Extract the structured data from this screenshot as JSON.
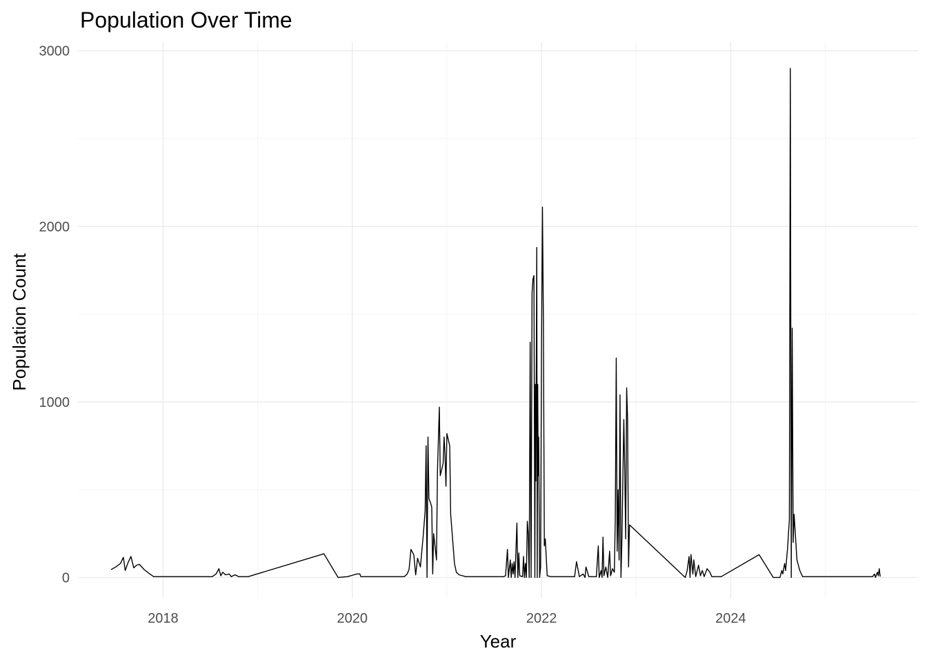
{
  "chart_data": {
    "type": "line",
    "title": "Population Over Time",
    "xlabel": "Year",
    "ylabel": "Population Count",
    "xlim": [
      2017.1,
      2025.98
    ],
    "ylim": [
      -120,
      3050
    ],
    "x_ticks": [
      2018,
      2020,
      2022,
      2024
    ],
    "x_tick_labels": [
      "2018",
      "2020",
      "2022",
      "2024"
    ],
    "y_ticks": [
      0,
      1000,
      2000,
      3000
    ],
    "y_tick_labels": [
      "0",
      "1000",
      "2000",
      "3000"
    ],
    "grid": true,
    "legend": "none",
    "series": [
      {
        "color": "#000000",
        "points": [
          [
            2017.45,
            45
          ],
          [
            2017.5,
            60
          ],
          [
            2017.55,
            80
          ],
          [
            2017.58,
            115
          ],
          [
            2017.6,
            40
          ],
          [
            2017.63,
            85
          ],
          [
            2017.66,
            120
          ],
          [
            2017.69,
            55
          ],
          [
            2017.72,
            70
          ],
          [
            2017.75,
            75
          ],
          [
            2017.8,
            45
          ],
          [
            2017.86,
            20
          ],
          [
            2017.9,
            5
          ],
          [
            2018.3,
            5
          ],
          [
            2018.52,
            5
          ],
          [
            2018.56,
            20
          ],
          [
            2018.59,
            50
          ],
          [
            2018.61,
            10
          ],
          [
            2018.63,
            30
          ],
          [
            2018.66,
            15
          ],
          [
            2018.7,
            20
          ],
          [
            2018.72,
            5
          ],
          [
            2018.76,
            15
          ],
          [
            2018.8,
            5
          ],
          [
            2018.9,
            5
          ],
          [
            2019.7,
            135
          ],
          [
            2019.85,
            0
          ],
          [
            2019.95,
            5
          ],
          [
            2020.05,
            20
          ],
          [
            2020.08,
            20
          ],
          [
            2020.09,
            5
          ],
          [
            2020.45,
            5
          ],
          [
            2020.55,
            5
          ],
          [
            2020.58,
            20
          ],
          [
            2020.6,
            45
          ],
          [
            2020.62,
            160
          ],
          [
            2020.65,
            130
          ],
          [
            2020.67,
            15
          ],
          [
            2020.69,
            110
          ],
          [
            2020.72,
            60
          ],
          [
            2020.75,
            240
          ],
          [
            2020.77,
            380
          ],
          [
            2020.78,
            750
          ],
          [
            2020.79,
            0
          ],
          [
            2020.8,
            800
          ],
          [
            2020.81,
            450
          ],
          [
            2020.83,
            420
          ],
          [
            2020.84,
            400
          ],
          [
            2020.85,
            20
          ],
          [
            2020.86,
            250
          ],
          [
            2020.87,
            200
          ],
          [
            2020.89,
            100
          ],
          [
            2020.9,
            600
          ],
          [
            2020.92,
            970
          ],
          [
            2020.93,
            580
          ],
          [
            2020.96,
            650
          ],
          [
            2020.97,
            800
          ],
          [
            2020.98,
            700
          ],
          [
            2020.99,
            520
          ],
          [
            2021.0,
            820
          ],
          [
            2021.03,
            750
          ],
          [
            2021.04,
            360
          ],
          [
            2021.08,
            80
          ],
          [
            2021.1,
            30
          ],
          [
            2021.13,
            15
          ],
          [
            2021.2,
            5
          ],
          [
            2021.4,
            5
          ],
          [
            2021.6,
            5
          ],
          [
            2021.62,
            10
          ],
          [
            2021.64,
            160
          ],
          [
            2021.65,
            0
          ],
          [
            2021.67,
            100
          ],
          [
            2021.68,
            0
          ],
          [
            2021.69,
            80
          ],
          [
            2021.7,
            20
          ],
          [
            2021.71,
            90
          ],
          [
            2021.72,
            0
          ],
          [
            2021.74,
            310
          ],
          [
            2021.75,
            0
          ],
          [
            2021.76,
            140
          ],
          [
            2021.77,
            10
          ],
          [
            2021.8,
            5
          ],
          [
            2021.81,
            120
          ],
          [
            2021.82,
            0
          ],
          [
            2021.83,
            80
          ],
          [
            2021.84,
            0
          ],
          [
            2021.85,
            320
          ],
          [
            2021.86,
            250
          ],
          [
            2021.87,
            0
          ],
          [
            2021.88,
            1340
          ],
          [
            2021.89,
            0
          ],
          [
            2021.9,
            1620
          ],
          [
            2021.91,
            1700
          ],
          [
            2021.92,
            1720
          ],
          [
            2021.93,
            0
          ],
          [
            2021.935,
            1100
          ],
          [
            2021.94,
            550
          ],
          [
            2021.95,
            1880
          ],
          [
            2021.955,
            0
          ],
          [
            2021.96,
            1100
          ],
          [
            2021.965,
            580
          ],
          [
            2021.97,
            800
          ],
          [
            2021.98,
            0
          ],
          [
            2021.99,
            60
          ],
          [
            2022.0,
            1290
          ],
          [
            2022.01,
            2110
          ],
          [
            2022.02,
            1460
          ],
          [
            2022.03,
            180
          ],
          [
            2022.04,
            220
          ],
          [
            2022.06,
            10
          ],
          [
            2022.1,
            5
          ],
          [
            2022.35,
            5
          ],
          [
            2022.37,
            90
          ],
          [
            2022.4,
            5
          ],
          [
            2022.44,
            20
          ],
          [
            2022.46,
            0
          ],
          [
            2022.47,
            60
          ],
          [
            2022.5,
            5
          ],
          [
            2022.58,
            5
          ],
          [
            2022.6,
            180
          ],
          [
            2022.61,
            0
          ],
          [
            2022.63,
            40
          ],
          [
            2022.64,
            0
          ],
          [
            2022.65,
            230
          ],
          [
            2022.66,
            10
          ],
          [
            2022.68,
            60
          ],
          [
            2022.7,
            0
          ],
          [
            2022.72,
            150
          ],
          [
            2022.73,
            10
          ],
          [
            2022.75,
            50
          ],
          [
            2022.77,
            30
          ],
          [
            2022.78,
            340
          ],
          [
            2022.79,
            1250
          ],
          [
            2022.8,
            150
          ],
          [
            2022.81,
            500
          ],
          [
            2022.82,
            100
          ],
          [
            2022.83,
            1040
          ],
          [
            2022.84,
            0
          ],
          [
            2022.85,
            220
          ],
          [
            2022.87,
            900
          ],
          [
            2022.88,
            600
          ],
          [
            2022.89,
            220
          ],
          [
            2022.9,
            1080
          ],
          [
            2022.91,
            900
          ],
          [
            2022.92,
            60
          ],
          [
            2022.93,
            300
          ],
          [
            2023.52,
            0
          ],
          [
            2023.54,
            40
          ],
          [
            2023.56,
            120
          ],
          [
            2023.57,
            0
          ],
          [
            2023.58,
            130
          ],
          [
            2023.6,
            20
          ],
          [
            2023.61,
            100
          ],
          [
            2023.63,
            5
          ],
          [
            2023.66,
            70
          ],
          [
            2023.68,
            10
          ],
          [
            2023.7,
            40
          ],
          [
            2023.72,
            5
          ],
          [
            2023.75,
            50
          ],
          [
            2023.78,
            30
          ],
          [
            2023.8,
            5
          ],
          [
            2023.9,
            5
          ],
          [
            2024.3,
            130
          ],
          [
            2024.45,
            0
          ],
          [
            2024.52,
            0
          ],
          [
            2024.54,
            40
          ],
          [
            2024.55,
            20
          ],
          [
            2024.57,
            80
          ],
          [
            2024.58,
            40
          ],
          [
            2024.6,
            160
          ],
          [
            2024.62,
            330
          ],
          [
            2024.63,
            2900
          ],
          [
            2024.64,
            0
          ],
          [
            2024.65,
            1420
          ],
          [
            2024.66,
            200
          ],
          [
            2024.67,
            360
          ],
          [
            2024.7,
            100
          ],
          [
            2024.73,
            40
          ],
          [
            2024.76,
            5
          ],
          [
            2024.8,
            5
          ],
          [
            2025.5,
            5
          ],
          [
            2025.52,
            20
          ],
          [
            2025.53,
            0
          ],
          [
            2025.55,
            30
          ],
          [
            2025.56,
            10
          ],
          [
            2025.57,
            50
          ],
          [
            2025.58,
            5
          ]
        ]
      }
    ]
  }
}
